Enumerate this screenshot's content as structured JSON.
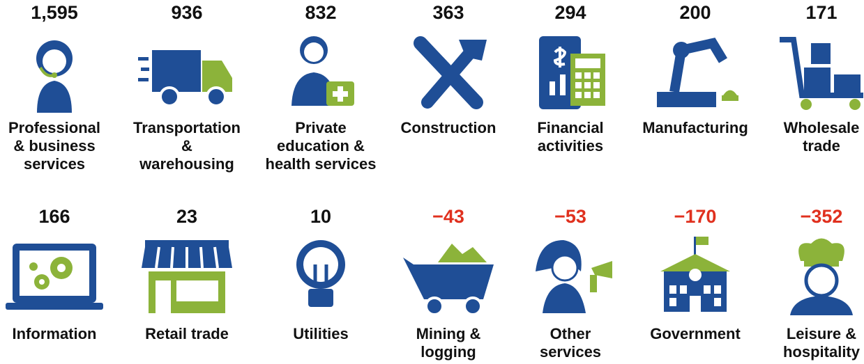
{
  "items": [
    {
      "value": "1,595",
      "color": "#111111",
      "label": [
        "Professional",
        "& business",
        "services"
      ]
    },
    {
      "value": "936",
      "color": "#111111",
      "label": [
        "Transportation",
        "&",
        "warehousing"
      ]
    },
    {
      "value": "832",
      "color": "#111111",
      "label": [
        "Private",
        "education &",
        "health services"
      ]
    },
    {
      "value": "363",
      "color": "#111111",
      "label": [
        "Construction"
      ]
    },
    {
      "value": "294",
      "color": "#111111",
      "label": [
        "Financial",
        "activities"
      ]
    },
    {
      "value": "200",
      "color": "#111111",
      "label": [
        "Manufacturing"
      ]
    },
    {
      "value": "171",
      "color": "#111111",
      "label": [
        "Wholesale",
        "trade"
      ]
    },
    {
      "value": "166",
      "color": "#111111",
      "label": [
        "Information"
      ]
    },
    {
      "value": "23",
      "color": "#111111",
      "label": [
        "Retail trade"
      ]
    },
    {
      "value": "10",
      "color": "#111111",
      "label": [
        "Utilities"
      ]
    },
    {
      "value": "−43",
      "color": "#e0301e",
      "label": [
        "Mining &",
        "logging"
      ]
    },
    {
      "value": "−53",
      "color": "#e0301e",
      "label": [
        "Other",
        "services"
      ]
    },
    {
      "value": "−170",
      "color": "#e0301e",
      "label": [
        "Government"
      ]
    },
    {
      "value": "−352",
      "color": "#e0301e",
      "label": [
        "Leisure &",
        "hospitality"
      ]
    }
  ]
}
